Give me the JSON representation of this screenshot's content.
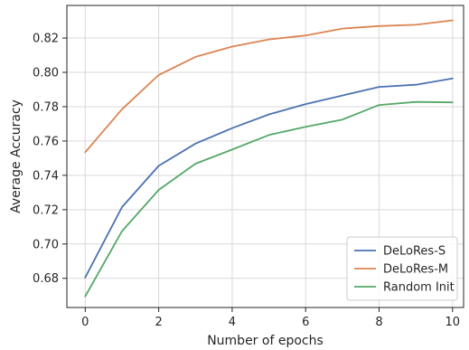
{
  "chart_data": {
    "type": "line",
    "title": "",
    "xlabel": "Number of epochs",
    "ylabel": "Average Accuracy",
    "x": [
      0,
      1,
      2,
      3,
      4,
      5,
      6,
      7,
      8,
      9,
      10
    ],
    "xlim": [
      -0.5,
      10.3
    ],
    "ylim": [
      0.663,
      0.839
    ],
    "xticks": [
      0,
      2,
      4,
      6,
      8,
      10
    ],
    "xtick_labels": [
      "0",
      "2",
      "4",
      "6",
      "8",
      "10"
    ],
    "yticks": [
      0.68,
      0.7,
      0.72,
      0.74,
      0.76,
      0.78,
      0.8,
      0.82
    ],
    "ytick_labels": [
      "0.68",
      "0.70",
      "0.72",
      "0.74",
      "0.76",
      "0.78",
      "0.80",
      "0.82"
    ],
    "grid": true,
    "legend_position": "bottom-right",
    "series": [
      {
        "name": "DeLoRes-S",
        "color": "#4c72b0",
        "values": [
          0.6805,
          0.7215,
          0.7455,
          0.7585,
          0.7675,
          0.7755,
          0.7815,
          0.7865,
          0.7915,
          0.7928,
          0.7965
        ]
      },
      {
        "name": "DeLoRes-M",
        "color": "#dd8452",
        "values": [
          0.7535,
          0.7785,
          0.7985,
          0.809,
          0.815,
          0.8192,
          0.8215,
          0.8255,
          0.827,
          0.8277,
          0.8303
        ]
      },
      {
        "name": "Random Init",
        "color": "#55a868",
        "values": [
          0.6695,
          0.7075,
          0.7315,
          0.7468,
          0.755,
          0.7635,
          0.7683,
          0.7725,
          0.781,
          0.7828,
          0.7825
        ]
      }
    ]
  }
}
